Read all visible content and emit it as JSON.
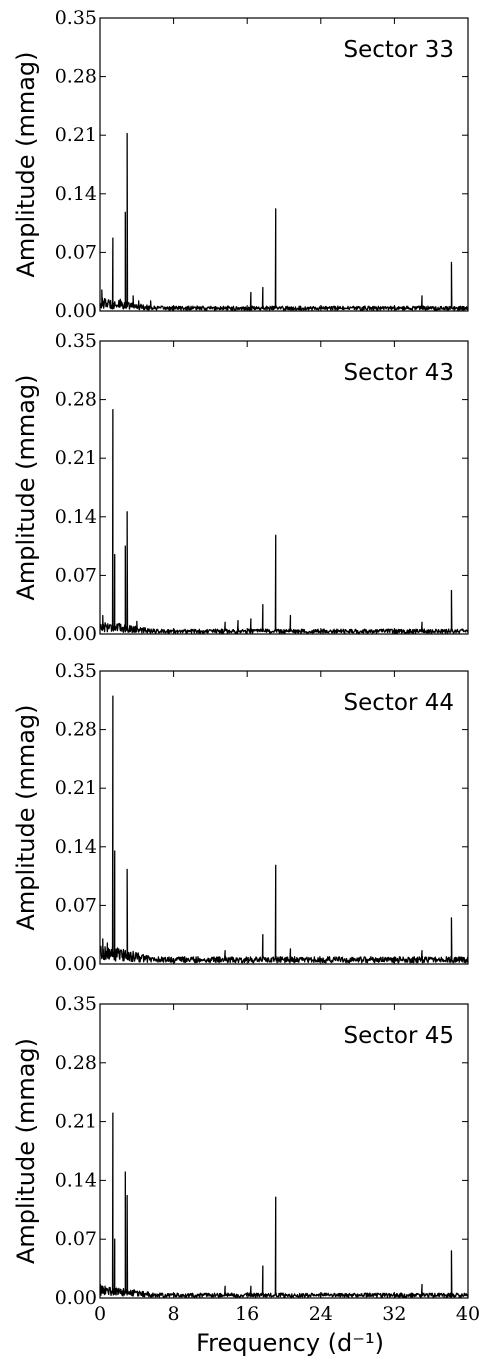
{
  "chart_data": [
    {
      "type": "line",
      "annotation": "Sector 33",
      "ylabel": "Amplitude (mmag)",
      "xlabel": "",
      "xlim": [
        0,
        40
      ],
      "ylim": [
        0,
        0.35
      ],
      "yticks": [
        "0.00",
        "0.07",
        "0.14",
        "0.21",
        "0.28",
        "0.35"
      ],
      "peaks": [
        {
          "x": 0.2,
          "y": 0.025
        },
        {
          "x": 1.4,
          "y": 0.087
        },
        {
          "x": 2.2,
          "y": 0.014
        },
        {
          "x": 2.75,
          "y": 0.118
        },
        {
          "x": 2.95,
          "y": 0.212
        },
        {
          "x": 3.6,
          "y": 0.018
        },
        {
          "x": 4.2,
          "y": 0.012
        },
        {
          "x": 5.5,
          "y": 0.012
        },
        {
          "x": 16.4,
          "y": 0.022
        },
        {
          "x": 17.7,
          "y": 0.028
        },
        {
          "x": 19.1,
          "y": 0.122
        },
        {
          "x": 35.0,
          "y": 0.018
        },
        {
          "x": 38.2,
          "y": 0.058
        }
      ],
      "noise_level": 0.004
    },
    {
      "type": "line",
      "annotation": "Sector 43",
      "ylabel": "Amplitude (mmag)",
      "xlabel": "",
      "xlim": [
        0,
        40
      ],
      "ylim": [
        0,
        0.35
      ],
      "yticks": [
        "0.00",
        "0.07",
        "0.14",
        "0.21",
        "0.28",
        "0.35"
      ],
      "peaks": [
        {
          "x": 0.3,
          "y": 0.022
        },
        {
          "x": 1.4,
          "y": 0.268
        },
        {
          "x": 1.6,
          "y": 0.095
        },
        {
          "x": 2.75,
          "y": 0.105
        },
        {
          "x": 2.95,
          "y": 0.146
        },
        {
          "x": 4.0,
          "y": 0.015
        },
        {
          "x": 13.6,
          "y": 0.014
        },
        {
          "x": 15.0,
          "y": 0.016
        },
        {
          "x": 16.4,
          "y": 0.018
        },
        {
          "x": 17.7,
          "y": 0.035
        },
        {
          "x": 19.1,
          "y": 0.118
        },
        {
          "x": 20.7,
          "y": 0.022
        },
        {
          "x": 35.0,
          "y": 0.014
        },
        {
          "x": 38.2,
          "y": 0.052
        }
      ],
      "noise_level": 0.004
    },
    {
      "type": "line",
      "annotation": "Sector 44",
      "ylabel": "Amplitude (mmag)",
      "xlabel": "",
      "xlim": [
        0,
        40
      ],
      "ylim": [
        0,
        0.35
      ],
      "yticks": [
        "0.00",
        "0.07",
        "0.14",
        "0.21",
        "0.28",
        "0.35"
      ],
      "peaks": [
        {
          "x": 0.3,
          "y": 0.03
        },
        {
          "x": 0.8,
          "y": 0.025
        },
        {
          "x": 1.4,
          "y": 0.32
        },
        {
          "x": 1.6,
          "y": 0.135
        },
        {
          "x": 2.95,
          "y": 0.113
        },
        {
          "x": 3.6,
          "y": 0.015
        },
        {
          "x": 13.6,
          "y": 0.016
        },
        {
          "x": 17.7,
          "y": 0.035
        },
        {
          "x": 19.1,
          "y": 0.118
        },
        {
          "x": 20.7,
          "y": 0.018
        },
        {
          "x": 35.0,
          "y": 0.016
        },
        {
          "x": 38.2,
          "y": 0.055
        }
      ],
      "noise_level": 0.006
    },
    {
      "type": "line",
      "annotation": "Sector 45",
      "ylabel": "Amplitude (mmag)",
      "xlabel": "Frequency (d⁻¹)",
      "xlim": [
        0,
        40
      ],
      "ylim": [
        0,
        0.35
      ],
      "yticks": [
        "0.00",
        "0.07",
        "0.14",
        "0.21",
        "0.28",
        "0.35"
      ],
      "xticks": [
        "0",
        "8",
        "16",
        "24",
        "32",
        "40"
      ],
      "peaks": [
        {
          "x": 0.3,
          "y": 0.014
        },
        {
          "x": 1.4,
          "y": 0.22
        },
        {
          "x": 1.6,
          "y": 0.07
        },
        {
          "x": 2.75,
          "y": 0.15
        },
        {
          "x": 2.95,
          "y": 0.122
        },
        {
          "x": 13.6,
          "y": 0.014
        },
        {
          "x": 16.4,
          "y": 0.014
        },
        {
          "x": 17.7,
          "y": 0.038
        },
        {
          "x": 19.1,
          "y": 0.12
        },
        {
          "x": 35.0,
          "y": 0.016
        },
        {
          "x": 38.2,
          "y": 0.056
        }
      ],
      "noise_level": 0.004
    }
  ]
}
